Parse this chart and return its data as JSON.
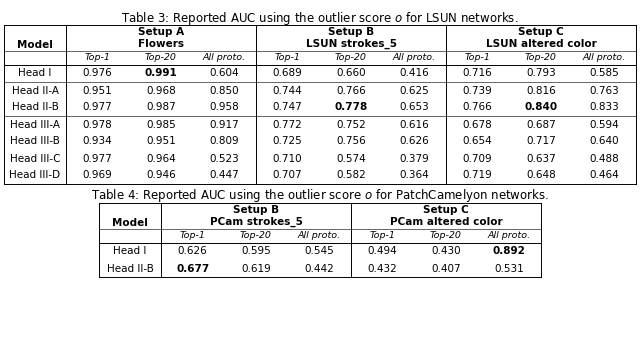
{
  "table3_caption": "Table 3: Reported AUC using the outlier score $o$ for LSUN networks.",
  "table4_caption": "Table 4: Reported AUC using the outlier score $o$ for PatchCamelyon networks.",
  "table3": {
    "rows": [
      {
        "model": "Head I",
        "values": [
          [
            0.976,
            0.991,
            0.604
          ],
          [
            0.689,
            0.66,
            0.416
          ],
          [
            0.716,
            0.793,
            0.585
          ]
        ],
        "bold": [
          [
            false,
            true,
            false
          ],
          [
            false,
            false,
            false
          ],
          [
            false,
            false,
            false
          ]
        ]
      },
      {
        "model": "Head II-A",
        "values": [
          [
            0.951,
            0.968,
            0.85
          ],
          [
            0.744,
            0.766,
            0.625
          ],
          [
            0.739,
            0.816,
            0.763
          ]
        ],
        "bold": [
          [
            false,
            false,
            false
          ],
          [
            false,
            false,
            false
          ],
          [
            false,
            false,
            false
          ]
        ]
      },
      {
        "model": "Head II-B",
        "values": [
          [
            0.977,
            0.987,
            0.958
          ],
          [
            0.747,
            0.778,
            0.653
          ],
          [
            0.766,
            0.84,
            0.833
          ]
        ],
        "bold": [
          [
            false,
            false,
            false
          ],
          [
            false,
            true,
            false
          ],
          [
            false,
            true,
            false
          ]
        ]
      },
      {
        "model": "Head III-A",
        "values": [
          [
            0.978,
            0.985,
            0.917
          ],
          [
            0.772,
            0.752,
            0.616
          ],
          [
            0.678,
            0.687,
            0.594
          ]
        ],
        "bold": [
          [
            false,
            false,
            false
          ],
          [
            false,
            false,
            false
          ],
          [
            false,
            false,
            false
          ]
        ]
      },
      {
        "model": "Head III-B",
        "values": [
          [
            0.934,
            0.951,
            0.809
          ],
          [
            0.725,
            0.756,
            0.626
          ],
          [
            0.654,
            0.717,
            0.64
          ]
        ],
        "bold": [
          [
            false,
            false,
            false
          ],
          [
            false,
            false,
            false
          ],
          [
            false,
            false,
            false
          ]
        ]
      },
      {
        "model": "Head III-C",
        "values": [
          [
            0.977,
            0.964,
            0.523
          ],
          [
            0.71,
            0.574,
            0.379
          ],
          [
            0.709,
            0.637,
            0.488
          ]
        ],
        "bold": [
          [
            false,
            false,
            false
          ],
          [
            false,
            false,
            false
          ],
          [
            false,
            false,
            false
          ]
        ]
      },
      {
        "model": "Head III-D",
        "values": [
          [
            0.969,
            0.946,
            0.447
          ],
          [
            0.707,
            0.582,
            0.364
          ],
          [
            0.719,
            0.648,
            0.464
          ]
        ],
        "bold": [
          [
            false,
            false,
            false
          ],
          [
            false,
            false,
            false
          ],
          [
            false,
            false,
            false
          ]
        ]
      }
    ],
    "group_names": [
      "Setup A",
      "Setup B",
      "Setup C"
    ],
    "subgroup_names": [
      "Flowers",
      "LSUN strokes_5",
      "LSUN altered color"
    ],
    "sub_cols": [
      "Top-1",
      "Top-20",
      "All proto."
    ],
    "row_group_seps": [
      1,
      3
    ]
  },
  "table4": {
    "rows": [
      {
        "model": "Head I",
        "values": [
          [
            0.626,
            0.595,
            0.545
          ],
          [
            0.494,
            0.43,
            0.892
          ]
        ],
        "bold": [
          [
            false,
            false,
            false
          ],
          [
            false,
            false,
            true
          ]
        ]
      },
      {
        "model": "Head II-B",
        "values": [
          [
            0.677,
            0.619,
            0.442
          ],
          [
            0.432,
            0.407,
            0.531
          ]
        ],
        "bold": [
          [
            true,
            false,
            false
          ],
          [
            false,
            false,
            false
          ]
        ]
      }
    ],
    "group_names": [
      "Setup B",
      "Setup C"
    ],
    "subgroup_names": [
      "PCam strokes_5",
      "PCam altered color"
    ],
    "sub_cols": [
      "Top-1",
      "Top-20",
      "All proto."
    ]
  },
  "fontsize": 7.5,
  "fontsize_small": 6.8,
  "caption_fontsize": 8.5,
  "lw": 0.7
}
